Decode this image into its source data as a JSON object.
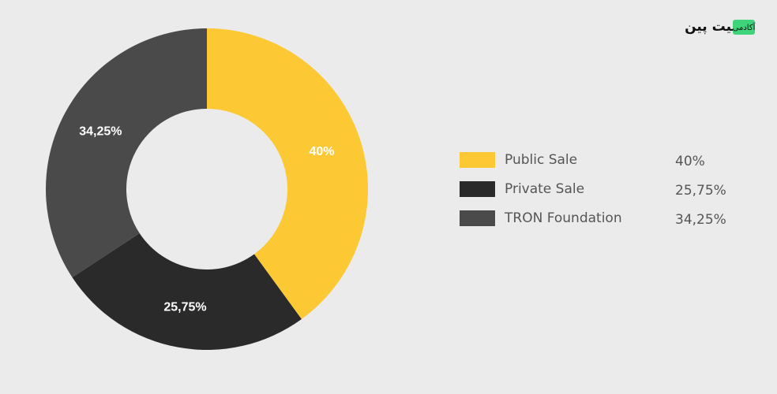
{
  "chart_data": {
    "type": "donut",
    "categories": [
      "Public Sale",
      "Private Sale",
      "TRON Foundation"
    ],
    "values": [
      40,
      25.75,
      34.25
    ],
    "value_labels": [
      "40%",
      "25,75%",
      "34,25%"
    ],
    "colors": [
      "#fcc934",
      "#2a2a2a",
      "#4a4a4a"
    ]
  },
  "watermark": {
    "name": "بیت پین",
    "badge": "آکادمی"
  }
}
